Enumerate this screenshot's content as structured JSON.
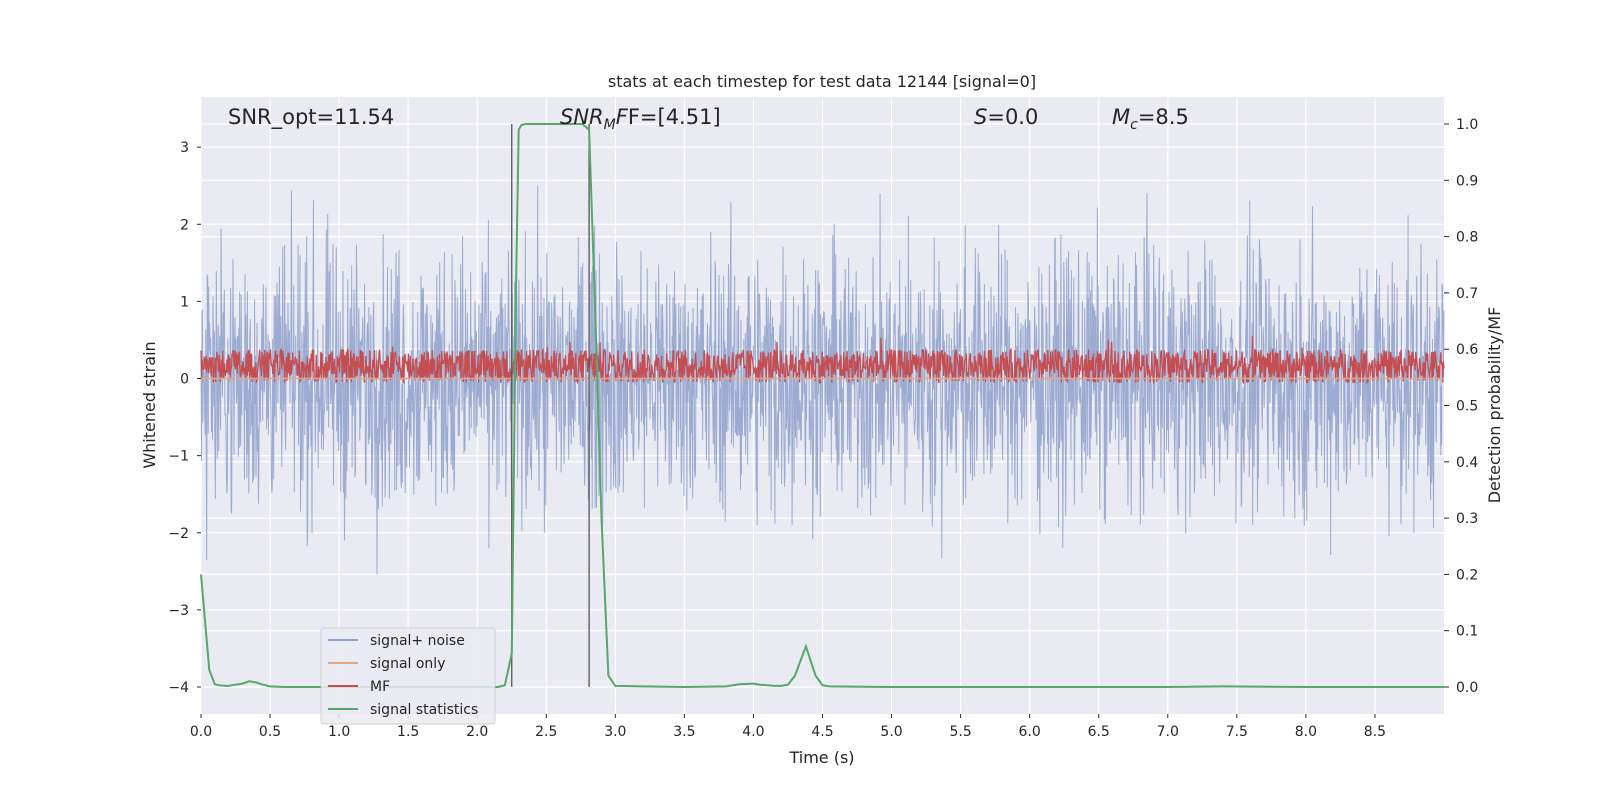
{
  "chart_data": {
    "type": "line",
    "title": "stats at each timestep for test data 12144 [signal=0]",
    "xlabel": "Time (s)",
    "ylabel": "Whitened strain",
    "y2label": "Detection probability/MF",
    "xlim": [
      0.0,
      9.0
    ],
    "ylim": [
      -4.35,
      3.65
    ],
    "y2lim": [
      -0.048,
      1.048
    ],
    "xticks": [
      "0.0",
      "0.5",
      "1.0",
      "1.5",
      "2.0",
      "2.5",
      "3.0",
      "3.5",
      "4.0",
      "4.5",
      "5.0",
      "5.5",
      "6.0",
      "6.5",
      "7.0",
      "7.5",
      "8.0",
      "8.5"
    ],
    "yticks": [
      "−4",
      "−3",
      "−2",
      "−1",
      "0",
      "1",
      "2",
      "3"
    ],
    "y2ticks": [
      "0.0",
      "0.1",
      "0.2",
      "0.3",
      "0.4",
      "0.5",
      "0.6",
      "0.7",
      "0.8",
      "0.9",
      "1.0"
    ],
    "grid": true,
    "legend_position": "lower-left",
    "annotations": {
      "snr_opt": "SNR_opt=11.54",
      "snr_mf": "F=[4.51]",
      "s": "=0.0",
      "mc": "=8.5"
    },
    "vlines": [
      2.25,
      2.81
    ],
    "series": [
      {
        "name": "signal+ noise",
        "color": "#8da0cb",
        "kind": "noise",
        "amplitude_std": 0.85,
        "x_range": [
          0,
          9
        ]
      },
      {
        "name": "signal only",
        "color": "#e8a584",
        "kind": "flat",
        "value": 0.0
      },
      {
        "name": "MF",
        "color": "#c44e52",
        "kind": "mf",
        "baseline": 0.57,
        "amplitude": 0.03,
        "x_range": [
          0,
          9
        ]
      },
      {
        "name": "signal statistics",
        "color": "#55a868",
        "axis": "right",
        "x": [
          0.0,
          0.06,
          0.1,
          0.13,
          0.18,
          0.2,
          0.25,
          0.3,
          0.35,
          0.4,
          0.45,
          0.5,
          0.6,
          1.0,
          1.5,
          2.0,
          2.15,
          2.2,
          2.25,
          2.28,
          2.3,
          2.32,
          2.35,
          2.4,
          2.5,
          2.6,
          2.7,
          2.76,
          2.81,
          2.85,
          2.9,
          2.95,
          3.0,
          3.5,
          3.8,
          3.9,
          4.0,
          4.05,
          4.1,
          4.15,
          4.2,
          4.25,
          4.3,
          4.38,
          4.45,
          4.5,
          4.55,
          5.0,
          6.0,
          7.0,
          7.4,
          8.0,
          9.0
        ],
        "y": [
          0.2,
          0.03,
          0.005,
          0.003,
          0.002,
          0.002,
          0.004,
          0.006,
          0.01,
          0.008,
          0.004,
          0.001,
          0.0,
          0.0,
          0.0,
          0.0,
          0.0,
          0.003,
          0.06,
          0.7,
          0.99,
          0.998,
          1.0,
          1.0,
          1.0,
          1.0,
          1.0,
          1.0,
          0.99,
          0.7,
          0.3,
          0.02,
          0.002,
          0.0,
          0.001,
          0.005,
          0.006,
          0.004,
          0.003,
          0.002,
          0.002,
          0.004,
          0.02,
          0.072,
          0.02,
          0.003,
          0.001,
          0.0,
          0.0,
          0.0,
          0.001,
          0.0,
          0.0
        ]
      }
    ]
  },
  "colors": {
    "axes_bg": "#eaeaf2",
    "grid": "#ffffff",
    "vline": "#555555",
    "legend_bg": "#eaeaf2",
    "legend_border": "#cccccc"
  }
}
